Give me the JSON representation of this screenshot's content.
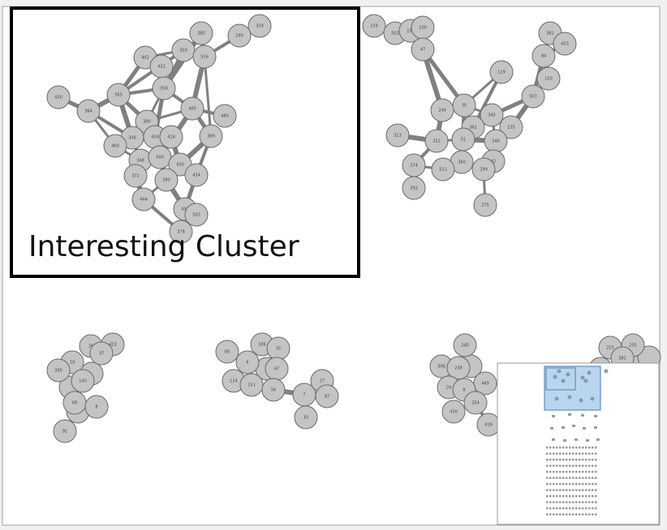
{
  "annotation": "Interesting Cluster",
  "nodes": [
    "380",
    "329",
    "290",
    "350",
    "516",
    "402",
    "432",
    "430",
    "565",
    "358",
    "364",
    "400",
    "480",
    "380",
    "348",
    "458",
    "418",
    "389",
    "460",
    "348",
    "500",
    "430",
    "434",
    "372",
    "390",
    "444",
    "458",
    "502",
    "378",
    "159",
    "502",
    "150",
    "100",
    "47",
    "381",
    "453",
    "84",
    "119",
    "150",
    "507",
    "35",
    "244",
    "345",
    "313",
    "361",
    "135",
    "352",
    "51",
    "346",
    "42",
    "374",
    "360",
    "511",
    "299",
    "292",
    "275",
    "26",
    "423",
    "37",
    "19",
    "390",
    "140",
    "69",
    "8",
    "91",
    "80",
    "186",
    "35",
    "6",
    "114",
    "151",
    "67",
    "56",
    "27",
    "7",
    "87",
    "10",
    "240",
    "306",
    "238",
    "449",
    "24",
    "8",
    "354",
    "430",
    "416",
    "215",
    "235",
    "381"
  ]
}
